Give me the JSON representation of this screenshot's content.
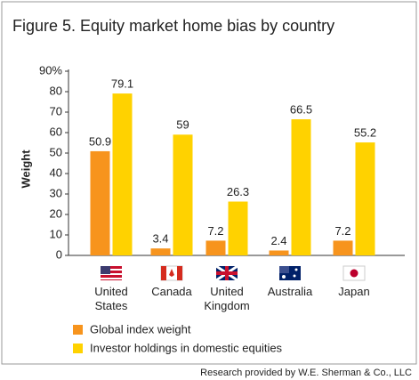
{
  "chart_data": {
    "type": "bar",
    "title": "Figure 5. Equity market home bias by country",
    "y_label": "Weight",
    "categories": [
      "United States",
      "Canada",
      "United Kingdom",
      "Australia",
      "Japan"
    ],
    "series": [
      {
        "name": "Global index weight",
        "color": "#f7941d",
        "values": [
          50.9,
          3.4,
          7.2,
          2.4,
          7.2
        ]
      },
      {
        "name": "Investor holdings in domestic equities",
        "color": "#ffd200",
        "values": [
          79.1,
          59,
          26.3,
          66.5,
          55.2
        ]
      }
    ],
    "ylim": [
      0,
      90
    ],
    "yticks": [
      0,
      10,
      20,
      30,
      40,
      50,
      60,
      70,
      80,
      {
        "value": 90,
        "label": "90%"
      }
    ],
    "source": "Research provided by W.E. Sherman & Co., LLC"
  }
}
